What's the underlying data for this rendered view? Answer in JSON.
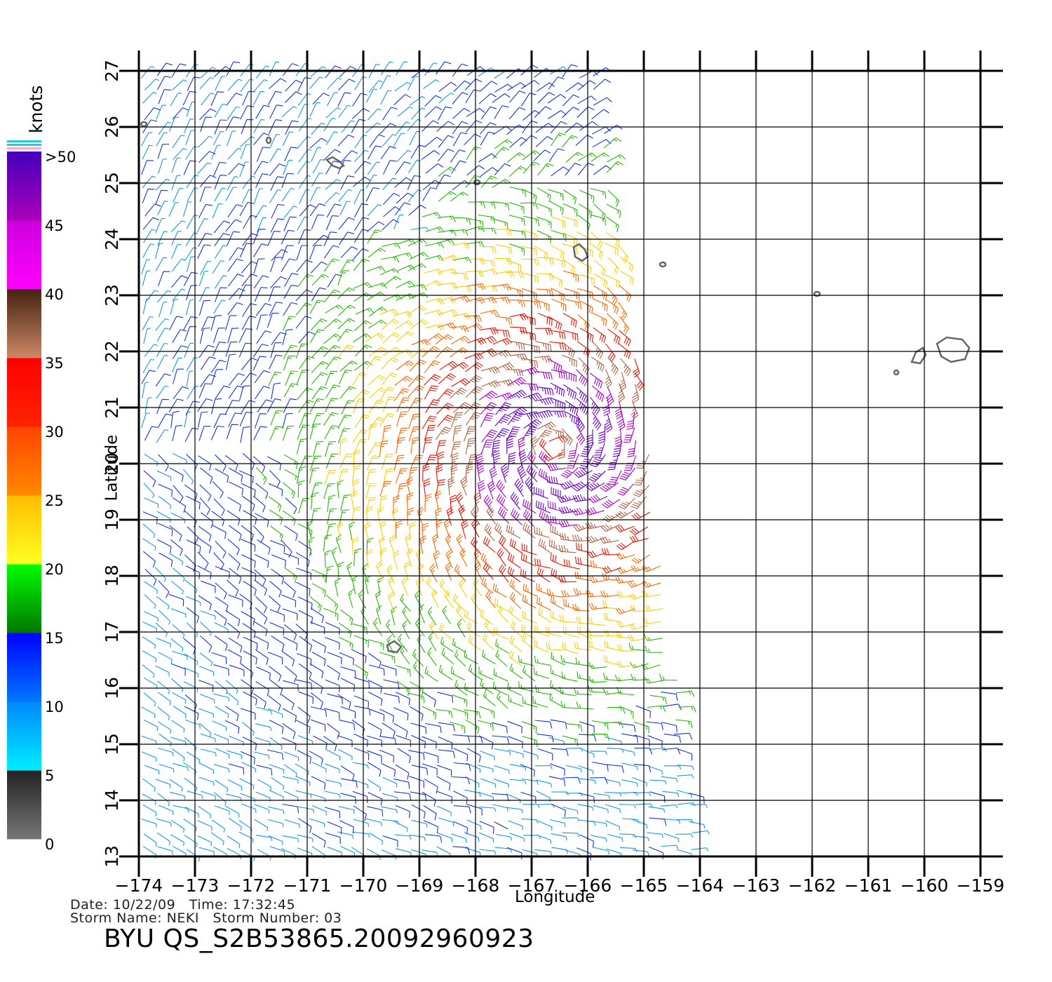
{
  "map": {
    "lon_range": [
      -174,
      -159
    ],
    "lat_range": [
      13,
      27
    ],
    "lon_ticks": [
      "-174",
      "-173",
      "-172",
      "-171",
      "-170",
      "-169",
      "-168",
      "-167",
      "-166",
      "-165",
      "-164",
      "-163",
      "-162",
      "-161",
      "-160",
      "-159"
    ],
    "lat_ticks": [
      "13",
      "14",
      "15",
      "16",
      "17",
      "18",
      "19",
      "20",
      "21",
      "22",
      "23",
      "24",
      "25",
      "26",
      "27"
    ],
    "xlabel": "Longitude",
    "ylabel": "Latitude",
    "grid": true,
    "storm_center": {
      "lon": -166.6,
      "lat": 20.3
    },
    "swath_east_edge": {
      "top": -165.8,
      "bottom": -164.0
    }
  },
  "legend": {
    "unit": "knots",
    "labels": [
      ">50",
      "45",
      "40",
      "35",
      "30",
      "25",
      "20",
      "15",
      "10",
      "5",
      "0"
    ],
    "bands": [
      {
        "range": "0-5",
        "colors": [
          "#777777",
          "#222222"
        ]
      },
      {
        "range": "5-10",
        "colors": [
          "#00eeff",
          "#0088ff"
        ]
      },
      {
        "range": "10-15",
        "colors": [
          "#0077ff",
          "#0000ff"
        ]
      },
      {
        "range": "15-20",
        "colors": [
          "#007700",
          "#00ff00"
        ]
      },
      {
        "range": "20-25",
        "colors": [
          "#ffff22",
          "#ffbb00"
        ]
      },
      {
        "range": "25-30",
        "colors": [
          "#ff8800",
          "#ff4400"
        ]
      },
      {
        "range": "30-35",
        "colors": [
          "#ff2200",
          "#ff0000"
        ]
      },
      {
        "range": "35-40",
        "colors": [
          "#cc8866",
          "#442211"
        ]
      },
      {
        "range": "40-45",
        "colors": [
          "#ff00ff",
          "#cc00dd"
        ]
      },
      {
        "range": "45-50",
        "colors": [
          "#aa00bb",
          "#4400bb"
        ]
      }
    ]
  },
  "info": {
    "date_line": "Date: 10/22/09   Time: 17:32:45",
    "storm_line": "Storm Name: NEKI   Storm Number: 03",
    "product": "BYU QS_S2B53865.20092960923"
  }
}
